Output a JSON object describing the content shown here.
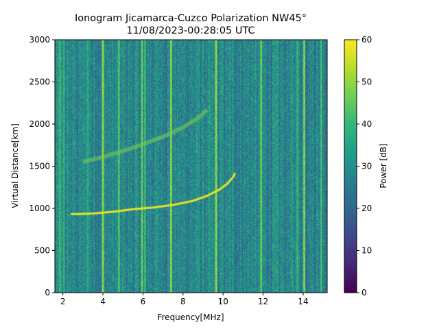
{
  "chart_data": {
    "type": "heatmap",
    "title_line1": "Ionogram Jicamarca-Cuzco Polarization NW45°",
    "title_line2": "11/08/2023-00:28:05 UTC",
    "xlabel": "Frequency[MHz]",
    "ylabel": "Virtual Distance[km]",
    "xlim": [
      1.6,
      15.2
    ],
    "ylim": [
      0,
      3000
    ],
    "x_ticks": [
      2,
      4,
      6,
      8,
      10,
      12,
      14
    ],
    "y_ticks": [
      0,
      500,
      1000,
      1500,
      2000,
      2500,
      3000
    ],
    "colorbar": {
      "label": "Power [dB]",
      "range": [
        0,
        60
      ],
      "ticks": [
        0,
        10,
        20,
        30,
        40,
        50,
        60
      ],
      "colormap": "viridis"
    },
    "background_level_db": 28,
    "traces": [
      {
        "kind": "ordinary-echo",
        "power_db": 58,
        "points": [
          [
            2.4,
            930
          ],
          [
            3.5,
            940
          ],
          [
            4.5,
            960
          ],
          [
            5.5,
            990
          ],
          [
            6.5,
            1010
          ],
          [
            7.5,
            1040
          ],
          [
            8.5,
            1090
          ],
          [
            9.2,
            1150
          ],
          [
            9.8,
            1220
          ],
          [
            10.2,
            1290
          ],
          [
            10.5,
            1370
          ],
          [
            10.6,
            1420
          ]
        ]
      },
      {
        "kind": "second-hop-echo",
        "power_db": 48,
        "points": [
          [
            3.0,
            1550
          ],
          [
            4.0,
            1610
          ],
          [
            5.0,
            1680
          ],
          [
            6.0,
            1760
          ],
          [
            7.0,
            1850
          ],
          [
            8.0,
            1960
          ],
          [
            8.8,
            2080
          ],
          [
            9.2,
            2170
          ]
        ]
      }
    ],
    "vertical_interference_bands": [
      {
        "freq": 1.85,
        "power_db": 45
      },
      {
        "freq": 2.05,
        "power_db": 42
      },
      {
        "freq": 3.25,
        "power_db": 40
      },
      {
        "freq": 4.0,
        "power_db": 55
      },
      {
        "freq": 4.8,
        "power_db": 48
      },
      {
        "freq": 5.95,
        "power_db": 50
      },
      {
        "freq": 6.1,
        "power_db": 45
      },
      {
        "freq": 7.4,
        "power_db": 56
      },
      {
        "freq": 8.8,
        "power_db": 32
      },
      {
        "freq": 9.65,
        "power_db": 55
      },
      {
        "freq": 11.9,
        "power_db": 52
      },
      {
        "freq": 13.7,
        "power_db": 42
      },
      {
        "freq": 14.05,
        "power_db": 55
      },
      {
        "freq": 14.9,
        "power_db": 45
      }
    ]
  }
}
